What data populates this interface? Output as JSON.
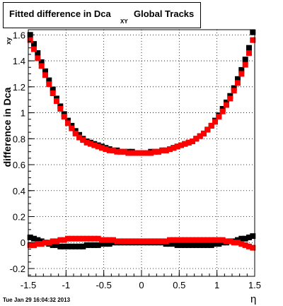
{
  "title": {
    "main": "Fitted difference in Dca",
    "subscript": "XY",
    "suffix": "Global Tracks"
  },
  "timestamp": "Tue Jan 29 16:04:32 2013",
  "chart_data": {
    "type": "scatter",
    "xlabel": "η",
    "ylabel": "difference in Dca",
    "ylabel_fragment": "xy",
    "xlim": [
      -1.5,
      1.5
    ],
    "ylim": [
      -0.26,
      1.64
    ],
    "grid": true,
    "xticks": [
      "-1.5",
      "-1",
      "-0.5",
      "0",
      "0.5",
      "1",
      "1.5"
    ],
    "yticks": [
      "-0.2",
      "0",
      "0.2",
      "0.4",
      "0.6",
      "0.8",
      "1",
      "1.2",
      "1.4",
      "1.6"
    ],
    "series": [
      {
        "color": "#000000",
        "x": [
          -1.475,
          -1.425,
          -1.375,
          -1.325,
          -1.275,
          -1.225,
          -1.175,
          -1.125,
          -1.075,
          -1.025,
          -0.975,
          -0.925,
          -0.875,
          -0.825,
          -0.775,
          -0.725,
          -0.675,
          -0.625,
          -0.575,
          -0.525,
          -0.475,
          -0.425,
          -0.375,
          -0.325,
          -0.275,
          -0.225,
          -0.175,
          -0.125,
          -0.075,
          -0.025,
          0.025,
          0.075,
          0.125,
          0.175,
          0.225,
          0.275,
          0.325,
          0.375,
          0.425,
          0.475,
          0.525,
          0.575,
          0.625,
          0.675,
          0.725,
          0.775,
          0.825,
          0.875,
          0.925,
          0.975,
          1.025,
          1.075,
          1.125,
          1.175,
          1.225,
          1.275,
          1.325,
          1.375,
          1.425,
          1.475
        ],
        "y": [
          1.6,
          1.53,
          1.46,
          1.39,
          1.32,
          1.25,
          1.18,
          1.11,
          1.05,
          0.99,
          0.94,
          0.9,
          0.86,
          0.83,
          0.8,
          0.78,
          0.77,
          0.76,
          0.75,
          0.74,
          0.73,
          0.72,
          0.71,
          0.71,
          0.7,
          0.7,
          0.7,
          0.7,
          0.69,
          0.69,
          0.69,
          0.69,
          0.7,
          0.7,
          0.7,
          0.71,
          0.71,
          0.72,
          0.73,
          0.74,
          0.75,
          0.76,
          0.77,
          0.78,
          0.8,
          0.82,
          0.84,
          0.87,
          0.9,
          0.94,
          0.98,
          1.03,
          1.08,
          1.13,
          1.19,
          1.26,
          1.33,
          1.41,
          1.5,
          1.62
        ]
      },
      {
        "color": "#ff0000",
        "x": [
          -1.475,
          -1.425,
          -1.375,
          -1.325,
          -1.275,
          -1.225,
          -1.175,
          -1.125,
          -1.075,
          -1.025,
          -0.975,
          -0.925,
          -0.875,
          -0.825,
          -0.775,
          -0.725,
          -0.675,
          -0.625,
          -0.575,
          -0.525,
          -0.475,
          -0.425,
          -0.375,
          -0.325,
          -0.275,
          -0.225,
          -0.175,
          -0.125,
          -0.075,
          -0.025,
          0.025,
          0.075,
          0.125,
          0.175,
          0.225,
          0.275,
          0.325,
          0.375,
          0.425,
          0.475,
          0.525,
          0.575,
          0.625,
          0.675,
          0.725,
          0.775,
          0.825,
          0.875,
          0.925,
          0.975,
          1.025,
          1.075,
          1.125,
          1.175,
          1.225,
          1.275,
          1.325,
          1.375,
          1.425,
          1.475
        ],
        "y": [
          1.56,
          1.49,
          1.42,
          1.36,
          1.29,
          1.22,
          1.15,
          1.09,
          1.03,
          0.97,
          0.92,
          0.88,
          0.84,
          0.81,
          0.79,
          0.77,
          0.76,
          0.75,
          0.74,
          0.73,
          0.72,
          0.71,
          0.71,
          0.7,
          0.7,
          0.7,
          0.69,
          0.69,
          0.69,
          0.69,
          0.69,
          0.69,
          0.69,
          0.7,
          0.7,
          0.71,
          0.71,
          0.72,
          0.73,
          0.74,
          0.75,
          0.76,
          0.77,
          0.78,
          0.8,
          0.82,
          0.84,
          0.87,
          0.9,
          0.93,
          0.97,
          1.01,
          1.06,
          1.11,
          1.17,
          1.23,
          1.3,
          1.37,
          1.46,
          1.56
        ]
      },
      {
        "color": "#000000",
        "x": [
          -1.475,
          -1.425,
          -1.375,
          -1.325,
          -1.275,
          -1.225,
          -1.175,
          -1.125,
          -1.075,
          -1.025,
          -0.975,
          -0.925,
          -0.875,
          -0.825,
          -0.775,
          -0.725,
          -0.675,
          -0.625,
          -0.575,
          -0.525,
          -0.475,
          -0.425,
          -0.375,
          -0.325,
          -0.275,
          -0.225,
          -0.175,
          -0.125,
          -0.075,
          -0.025,
          0.025,
          0.075,
          0.125,
          0.175,
          0.225,
          0.275,
          0.325,
          0.375,
          0.425,
          0.475,
          0.525,
          0.575,
          0.625,
          0.675,
          0.725,
          0.775,
          0.825,
          0.875,
          0.925,
          0.975,
          1.025,
          1.075,
          1.125,
          1.175,
          1.225,
          1.275,
          1.325,
          1.375,
          1.425,
          1.475
        ],
        "y": [
          0.04,
          0.03,
          0.02,
          0.01,
          0.0,
          -0.01,
          -0.02,
          -0.02,
          -0.03,
          -0.03,
          -0.03,
          -0.03,
          -0.03,
          -0.03,
          -0.03,
          -0.02,
          -0.02,
          -0.02,
          -0.02,
          -0.01,
          -0.01,
          -0.01,
          0.0,
          0.0,
          0.0,
          0.0,
          0.0,
          0.0,
          0.0,
          0.0,
          0.0,
          0.0,
          0.0,
          0.0,
          0.0,
          0.0,
          -0.01,
          -0.01,
          -0.01,
          -0.02,
          -0.02,
          -0.02,
          -0.02,
          -0.02,
          -0.02,
          -0.02,
          -0.02,
          -0.02,
          -0.02,
          -0.01,
          -0.01,
          0.0,
          0.0,
          0.01,
          0.01,
          0.02,
          0.03,
          0.03,
          0.04,
          0.05
        ]
      },
      {
        "color": "#ff0000",
        "x": [
          -1.475,
          -1.425,
          -1.375,
          -1.325,
          -1.275,
          -1.225,
          -1.175,
          -1.125,
          -1.075,
          -1.025,
          -0.975,
          -0.925,
          -0.875,
          -0.825,
          -0.775,
          -0.725,
          -0.675,
          -0.625,
          -0.575,
          -0.525,
          -0.475,
          -0.425,
          -0.375,
          -0.325,
          -0.275,
          -0.225,
          -0.175,
          -0.125,
          -0.075,
          -0.025,
          0.025,
          0.075,
          0.125,
          0.175,
          0.225,
          0.275,
          0.325,
          0.375,
          0.425,
          0.475,
          0.525,
          0.575,
          0.625,
          0.675,
          0.725,
          0.775,
          0.825,
          0.875,
          0.925,
          0.975,
          1.025,
          1.075,
          1.125,
          1.175,
          1.225,
          1.275,
          1.325,
          1.375,
          1.425,
          1.475
        ],
        "y": [
          -0.02,
          -0.02,
          -0.01,
          -0.01,
          0.0,
          0.0,
          0.01,
          0.01,
          0.02,
          0.02,
          0.03,
          0.03,
          0.03,
          0.03,
          0.03,
          0.03,
          0.03,
          0.03,
          0.03,
          0.02,
          0.02,
          0.02,
          0.02,
          0.01,
          0.01,
          0.01,
          0.01,
          0.01,
          0.01,
          0.01,
          0.01,
          0.01,
          0.01,
          0.01,
          0.01,
          0.01,
          0.01,
          0.02,
          0.02,
          0.02,
          0.02,
          0.02,
          0.02,
          0.02,
          0.02,
          0.02,
          0.02,
          0.02,
          0.02,
          0.02,
          0.02,
          0.02,
          0.01,
          0.01,
          0.0,
          0.0,
          -0.01,
          -0.02,
          -0.03,
          -0.04
        ]
      }
    ]
  }
}
